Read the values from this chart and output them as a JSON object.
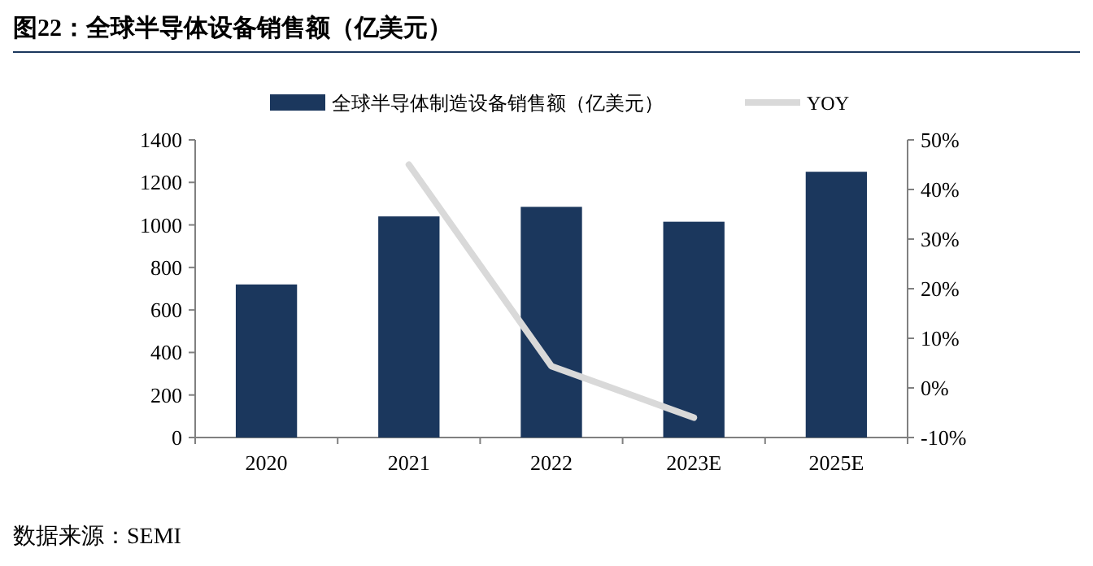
{
  "chart_data": {
    "type": "bar",
    "title": "图22：全球半导体设备销售额（亿美元）",
    "categories": [
      "2020",
      "2021",
      "2022",
      "2023E",
      "2025E"
    ],
    "series": [
      {
        "name": "全球半导体制造设备销售额（亿美元）",
        "color": "#1b375d",
        "values": [
          720,
          1040,
          1085,
          1015,
          1250
        ]
      },
      {
        "name": "YOY",
        "type": "line",
        "axis": "y2",
        "color": "#d9d9d9",
        "values": [
          null,
          45,
          4.4,
          -6,
          null
        ]
      }
    ],
    "ylim": [
      0,
      1400
    ],
    "yticks": [
      0,
      200,
      400,
      600,
      800,
      1000,
      1200,
      1400
    ],
    "y2lim": [
      -10,
      50
    ],
    "y2ticks": [
      {
        "value": -10,
        "label": "-10%"
      },
      {
        "value": 0,
        "label": "0%"
      },
      {
        "value": 10,
        "label": "10%"
      },
      {
        "value": 20,
        "label": "20%"
      },
      {
        "value": 30,
        "label": "30%"
      },
      {
        "value": 40,
        "label": "40%"
      },
      {
        "value": 50,
        "label": "50%"
      }
    ],
    "grid": false,
    "legend": "top",
    "marker": "none",
    "line_style": "solid",
    "annotations": [
      "数据来源：SEMI"
    ]
  }
}
